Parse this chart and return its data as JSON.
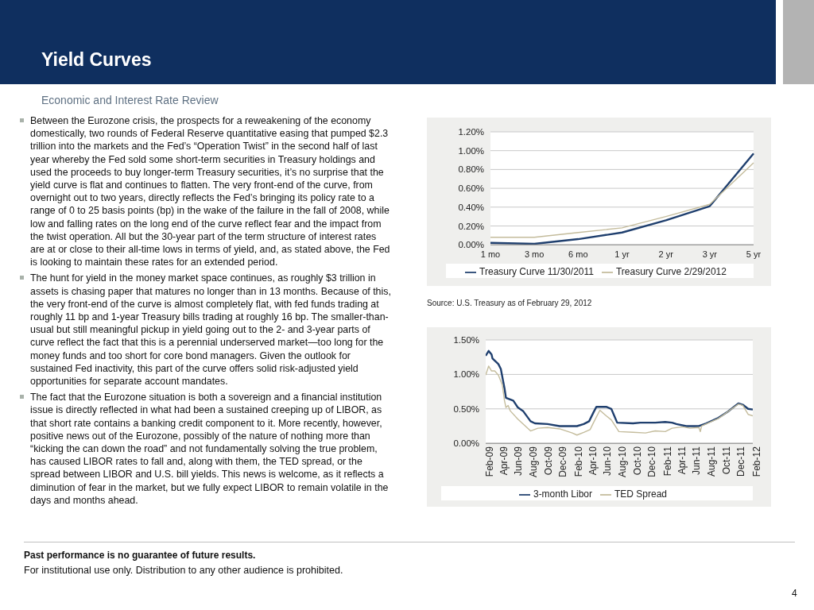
{
  "chart_data": [
    {
      "type": "line",
      "annotations": [
        "Yield Curves",
        "Economic and Interest Rate Review",
        "Between the Eurozone crisis, the prospects for a reweakening of the economy domestically, two rounds of Federal Reserve quantitative easing that pumped $2.3 trillion into the markets and the Fed’s “Operation Twist” in the second half of last year whereby the Fed sold some short-term securities in Treasury holdings and used the proceeds to buy longer-term Treasury securities, it’s no surprise that the yield curve is flat and continues to flatten. The very front-end of the curve, from overnight out to two years, directly reflects the Fed’s bringing its policy rate to a range of 0 to 25 basis points (bp) in the wake of the failure in the fall of 2008, while low and falling rates on the long end of the curve reflect fear and the impact from the twist operation. All but the 30-year part of the term structure of interest rates are at or close to their all-time lows in terms of yield, and, as stated above, the Fed is looking to maintain these rates for an extended period.",
        "The hunt for yield in the money market space continues, as roughly $3 trillion in assets is chasing paper that matures no longer than in 13 months. Because of this, the very front-end of the curve is almost completely flat, with fed funds trading at roughly 11 bp and 1-year Treasury bills trading at roughly 16 bp. The smaller-than-usual but still meaningful pickup in yield going out to the 2- and 3-year parts of curve reflect the fact that this is a perennial underserved market—too long for the money funds and too short for core bond managers. Given the outlook for sustained Fed inactivity, this part of the curve offers solid risk-adjusted yield opportunities for separate account mandates.",
        "The fact that the Eurozone situation is both a sovereign and a financial institution issue is directly reflected in what had been a sustained creeping up of LIBOR, as that short rate contains a banking credit component to it. More recently, however, positive news out of the Eurozone, possibly of the nature of nothing more than “kicking the can down the road” and not fundamentally solving the true problem, has caused LIBOR rates to fall and, along with them, the TED spread, or the spread between LIBOR and U.S. bill yields. This news is welcome, as it reflects a diminution of fear in the market, but we fully expect LIBOR to remain volatile in the days and months ahead.",
        "Source: U.S. Treasury as of February 29, 2012"
      ],
      "categories": [
        "1 mo",
        "3 mo",
        "6 mo",
        "1 yr",
        "2 yr",
        "3 yr",
        "5 yr"
      ],
      "series": [
        {
          "name": "Treasury Curve 11/30/2011",
          "color": "#1f3f6e",
          "values": [
            0.02,
            0.01,
            0.06,
            0.13,
            0.26,
            0.41,
            0.97
          ]
        },
        {
          "name": "Treasury Curve 2/29/2012",
          "color": "#c4bc9c",
          "values": [
            0.08,
            0.08,
            0.13,
            0.18,
            0.3,
            0.43,
            0.87
          ]
        }
      ],
      "ylim": [
        0,
        1.2
      ],
      "yticks": [
        {
          "value": 0,
          "label": "0.00%"
        },
        {
          "value": 0.2,
          "label": "0.20%"
        },
        {
          "value": 0.4,
          "label": "0.40%"
        },
        {
          "value": 0.6,
          "label": "0.60%"
        },
        {
          "value": 0.8,
          "label": "0.80%"
        },
        {
          "value": 1,
          "label": "1.00%"
        },
        {
          "value": 1.2,
          "label": "1.20%"
        }
      ],
      "grid": "y",
      "legend": "bottom",
      "marker": "none"
    },
    {
      "type": "line",
      "annotations": [
        "Past performance is no guarantee of future results.",
        "For institutional use only. Distribution to any other audience is prohibited.",
        "4"
      ],
      "series": [
        {
          "name": "3-month Libor",
          "color": "#1f3f6e",
          "x": [
            "2009-02-01",
            "2009-02-13",
            "2009-02-25",
            "2009-03-01",
            "2009-03-25",
            "2009-04-04",
            "2009-04-19",
            "2009-04-25",
            "2009-05-25",
            "2009-06-13",
            "2009-07-04",
            "2009-08-04",
            "2009-08-22",
            "2009-10-13",
            "2009-12-01",
            "2010-02-10",
            "2010-03-10",
            "2010-04-01",
            "2010-04-19",
            "2010-05-01",
            "2010-06-10",
            "2010-07-01",
            "2010-07-25",
            "2010-09-28",
            "2010-10-28",
            "2010-12-28",
            "2011-02-07",
            "2011-03-07",
            "2011-03-25",
            "2011-05-04",
            "2011-06-25",
            "2011-07-25",
            "2011-09-13",
            "2011-10-22",
            "2011-12-04",
            "2011-12-22",
            "2012-01-13",
            "2012-02-01"
          ],
          "values": [
            1.27,
            1.34,
            1.29,
            1.23,
            1.15,
            1.08,
            0.8,
            0.66,
            0.62,
            0.52,
            0.47,
            0.32,
            0.29,
            0.28,
            0.25,
            0.25,
            0.28,
            0.32,
            0.45,
            0.53,
            0.53,
            0.5,
            0.3,
            0.29,
            0.3,
            0.3,
            0.31,
            0.3,
            0.28,
            0.25,
            0.25,
            0.29,
            0.37,
            0.46,
            0.58,
            0.56,
            0.5,
            0.49
          ]
        },
        {
          "name": "TED Spread",
          "color": "#c4bc9c",
          "x": [
            "2009-02-01",
            "2009-02-13",
            "2009-02-25",
            "2009-03-10",
            "2009-03-25",
            "2009-04-10",
            "2009-04-19",
            "2009-04-25",
            "2009-05-04",
            "2009-05-13",
            "2009-06-13",
            "2009-08-04",
            "2009-09-03",
            "2009-10-13",
            "2009-12-01",
            "2010-01-22",
            "2010-02-10",
            "2010-03-10",
            "2010-04-05",
            "2010-04-19",
            "2010-05-15",
            "2010-06-10",
            "2010-07-01",
            "2010-08-01",
            "2010-09-28",
            "2010-11-18",
            "2010-12-28",
            "2011-02-07",
            "2011-03-07",
            "2011-04-19",
            "2011-05-19",
            "2011-06-25",
            "2011-07-01",
            "2011-07-06",
            "2011-09-13",
            "2011-12-04",
            "2011-12-22",
            "2012-01-13",
            "2012-02-01"
          ],
          "values": [
            0.99,
            1.12,
            1.05,
            1.05,
            0.99,
            0.85,
            0.62,
            0.52,
            0.55,
            0.47,
            0.35,
            0.18,
            0.22,
            0.23,
            0.21,
            0.15,
            0.12,
            0.16,
            0.2,
            0.3,
            0.48,
            0.4,
            0.34,
            0.17,
            0.16,
            0.15,
            0.18,
            0.17,
            0.22,
            0.24,
            0.22,
            0.23,
            0.17,
            0.25,
            0.36,
            0.57,
            0.55,
            0.42,
            0.4
          ]
        }
      ],
      "xlim": [
        "2009-02-01",
        "2012-02-01"
      ],
      "xticks": [
        {
          "value": "2009-02",
          "label": "Feb-09"
        },
        {
          "value": "2009-04",
          "label": "Apr-09"
        },
        {
          "value": "2009-06",
          "label": "Jun-09"
        },
        {
          "value": "2009-08",
          "label": "Aug-09"
        },
        {
          "value": "2009-10",
          "label": "Oct-09"
        },
        {
          "value": "2009-12",
          "label": "Dec-09"
        },
        {
          "value": "2010-02",
          "label": "Feb-10"
        },
        {
          "value": "2010-04",
          "label": "Apr-10"
        },
        {
          "value": "2010-06",
          "label": "Jun-10"
        },
        {
          "value": "2010-08",
          "label": "Aug-10"
        },
        {
          "value": "2010-10",
          "label": "Oct-10"
        },
        {
          "value": "2010-12",
          "label": "Dec-10"
        },
        {
          "value": "2011-02",
          "label": "Feb-11"
        },
        {
          "value": "2011-04",
          "label": "Apr-11"
        },
        {
          "value": "2011-06",
          "label": "Jun-11"
        },
        {
          "value": "2011-08",
          "label": "Aug-11"
        },
        {
          "value": "2011-10",
          "label": "Oct-11"
        },
        {
          "value": "2011-12",
          "label": "Dec-11"
        },
        {
          "value": "2012-02",
          "label": "Feb-12"
        }
      ],
      "ylim": [
        0,
        1.5
      ],
      "yticks": [
        {
          "value": 0,
          "label": "0.00%"
        },
        {
          "value": 0.5,
          "label": "0.50%"
        },
        {
          "value": 1,
          "label": "1.00%"
        },
        {
          "value": 1.5,
          "label": "1.50%"
        }
      ],
      "grid": "y",
      "legend": "bottom",
      "marker": "none"
    }
  ]
}
